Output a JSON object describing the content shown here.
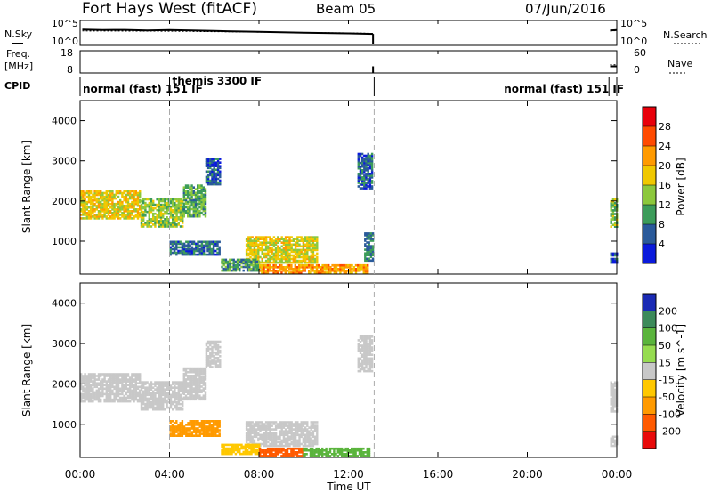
{
  "header": {
    "station": "Fort Hays West (fitACF)",
    "beam": "Beam 05",
    "date": "07/Jun/2016"
  },
  "top_panels": {
    "nsky_label": "N.Sky",
    "nsearch_label": "N.Search",
    "freq_label_1": "Freq.",
    "freq_label_2": "[MHz]",
    "nave_label": "Nave",
    "cpid_label": "CPID",
    "noise_ticks_left": [
      "10^5",
      "10^0"
    ],
    "noise_ticks_right": [
      "10^5",
      "10^0"
    ],
    "freq_ticks": [
      "18",
      "8"
    ],
    "nave_ticks": [
      "60",
      "0"
    ],
    "cpid_segments": [
      {
        "label": "normal (fast) 151 IF",
        "start": 0.0,
        "end": 4.0
      },
      {
        "label": "themis 3300 IF",
        "start": 4.0,
        "end": 13.15
      },
      {
        "label": "normal (fast) 151 IF",
        "start": 23.65,
        "end": 24.0
      }
    ]
  },
  "x_axis": {
    "label": "Time UT",
    "ticks": [
      "00:00",
      "04:00",
      "08:00",
      "12:00",
      "16:00",
      "20:00",
      "00:00"
    ]
  },
  "power_panel": {
    "ylabel": "Slant Range [km]",
    "yticks": [
      "4000",
      "3000",
      "2000",
      "1000"
    ],
    "colorbar_label": "Power [dB]",
    "colorbar_ticks": [
      "28",
      "24",
      "20",
      "16",
      "12",
      "8",
      "4"
    ],
    "colorbar_colors": [
      "#e8000a",
      "#ff4a00",
      "#ff9a00",
      "#f0c800",
      "#8cc83c",
      "#3c9c5a",
      "#2a5a9a",
      "#0a1adc"
    ]
  },
  "velocity_panel": {
    "ylabel": "Slant Range [km]",
    "yticks": [
      "4000",
      "3000",
      "2000",
      "1000"
    ],
    "colorbar_label": "Velocity [m s^-1]",
    "colorbar_ticks": [
      "200",
      "100",
      "50",
      "15",
      "-15",
      "-50",
      "-100",
      "-200"
    ],
    "colorbar_colors": [
      "#1a2ab4",
      "#3c8a5a",
      "#5ab43c",
      "#96dc50",
      "#c8c8c8",
      "#ffc800",
      "#ff9a00",
      "#ff5a00",
      "#e80a0a"
    ]
  },
  "chart_data": [
    {
      "type": "line",
      "title": "N.Sky / N.Search noise",
      "x_unit": "hours UT",
      "y_scale": "log",
      "ylim": [
        1,
        100000
      ],
      "series": [
        {
          "name": "N.Sky",
          "x": [
            0.1,
            1,
            2,
            3,
            4,
            6,
            8,
            10,
            12,
            13.1,
            23.7,
            24
          ],
          "y": [
            3000,
            2500,
            2600,
            2000,
            2400,
            1500,
            900,
            600,
            400,
            300,
            2000,
            2500
          ]
        },
        {
          "name": "N.Search",
          "x": [
            0.1,
            4,
            8,
            12,
            13.1,
            23.7,
            24
          ],
          "y": [
            1500,
            1300,
            800,
            500,
            400,
            1500,
            1800
          ]
        }
      ]
    },
    {
      "type": "line",
      "title": "Freq / Nave",
      "x_unit": "hours UT",
      "series": [
        {
          "name": "Freq. [MHz]",
          "x": [
            0.1,
            13.1,
            23.7,
            24
          ],
          "y": [
            11,
            11,
            11,
            11
          ]
        },
        {
          "name": "Nave",
          "x": [
            0.1,
            13.1,
            23.7,
            24
          ],
          "y": [
            22,
            22,
            22,
            22
          ]
        }
      ]
    },
    {
      "type": "heatmap",
      "title": "Power [dB]",
      "x_unit": "hours UT",
      "y_unit": "Slant Range [km]",
      "xlim": [
        0,
        24
      ],
      "ylim": [
        180,
        4500
      ],
      "regions": [
        {
          "t0": 0.0,
          "t1": 2.7,
          "r0": 1550,
          "r1": 2250,
          "power": 18
        },
        {
          "t0": 2.7,
          "t1": 4.6,
          "r0": 1350,
          "r1": 2050,
          "power": 14
        },
        {
          "t0": 4.6,
          "t1": 5.6,
          "r0": 1600,
          "r1": 2400,
          "power": 11
        },
        {
          "t0": 5.6,
          "t1": 6.3,
          "r0": 2400,
          "r1": 3050,
          "power": 6
        },
        {
          "t0": 4.0,
          "t1": 6.2,
          "r0": 650,
          "r1": 1000,
          "power": 7
        },
        {
          "t0": 7.4,
          "t1": 10.6,
          "r0": 450,
          "r1": 1100,
          "power": 17
        },
        {
          "t0": 6.3,
          "t1": 8.0,
          "r0": 250,
          "r1": 550,
          "power": 10
        },
        {
          "t0": 8.0,
          "t1": 12.9,
          "r0": 200,
          "r1": 400,
          "power": 22
        },
        {
          "t0": 12.4,
          "t1": 13.1,
          "r0": 2300,
          "r1": 3200,
          "power": 6
        },
        {
          "t0": 12.7,
          "t1": 13.1,
          "r0": 500,
          "r1": 1200,
          "power": 8
        },
        {
          "t0": 23.7,
          "t1": 24.0,
          "r0": 1300,
          "r1": 2050,
          "power": 13
        },
        {
          "t0": 23.7,
          "t1": 24.0,
          "r0": 450,
          "r1": 700,
          "power": 5
        }
      ]
    },
    {
      "type": "heatmap",
      "title": "Velocity [m s^-1]",
      "x_unit": "hours UT",
      "y_unit": "Slant Range [km]",
      "xlim": [
        0,
        24
      ],
      "ylim": [
        180,
        4500
      ],
      "regions": [
        {
          "t0": 0.0,
          "t1": 2.7,
          "r0": 1550,
          "r1": 2250,
          "velocity": 0
        },
        {
          "t0": 2.7,
          "t1": 4.6,
          "r0": 1350,
          "r1": 2050,
          "velocity": 0
        },
        {
          "t0": 4.6,
          "t1": 5.6,
          "r0": 1600,
          "r1": 2400,
          "velocity": 0
        },
        {
          "t0": 5.6,
          "t1": 6.3,
          "r0": 2400,
          "r1": 3050,
          "velocity": 0
        },
        {
          "t0": 4.0,
          "t1": 6.2,
          "r0": 700,
          "r1": 1100,
          "velocity": -55
        },
        {
          "t0": 7.4,
          "t1": 10.6,
          "r0": 450,
          "r1": 1050,
          "velocity": 0
        },
        {
          "t0": 6.3,
          "t1": 8.0,
          "r0": 250,
          "r1": 500,
          "velocity": -40
        },
        {
          "t0": 8.0,
          "t1": 10.0,
          "r0": 200,
          "r1": 420,
          "velocity": -150
        },
        {
          "t0": 10.0,
          "t1": 12.9,
          "r0": 200,
          "r1": 400,
          "velocity": 60
        },
        {
          "t0": 12.4,
          "t1": 13.1,
          "r0": 2300,
          "r1": 3200,
          "velocity": 0
        },
        {
          "t0": 23.7,
          "t1": 24.0,
          "r0": 1300,
          "r1": 2050,
          "velocity": 0
        },
        {
          "t0": 23.7,
          "t1": 24.0,
          "r0": 450,
          "r1": 700,
          "velocity": 0
        }
      ]
    }
  ]
}
